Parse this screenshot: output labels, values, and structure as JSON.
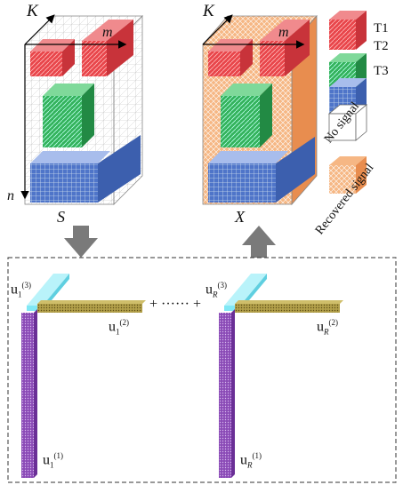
{
  "tensors": [
    {
      "name": "S",
      "axis_k": "K",
      "axis_m": "m",
      "axis_n": "n"
    },
    {
      "name": "X",
      "axis_k": "K",
      "axis_m": "m"
    }
  ],
  "legend": [
    {
      "label": "T1",
      "color": "#e8454a"
    },
    {
      "label": "T2",
      "color": "#33b25b"
    },
    {
      "label": "T3",
      "color": "#4f75c9"
    },
    {
      "label": "No signal",
      "color": "#ffffff"
    },
    {
      "label": "Recovered signal",
      "color": "#f2a26b"
    }
  ],
  "decomposition": {
    "op": "+ ······ +",
    "term1": {
      "u_base": "u",
      "u_sub": "1",
      "sup3": "(3)",
      "sup2": "(2)",
      "sup1": "(1)"
    },
    "termR": {
      "u_base": "u",
      "u_sub": "R",
      "sup3": "(3)",
      "sup2": "(2)",
      "sup1": "(1)"
    }
  },
  "colors": {
    "factor_mode3": "#80e8f5",
    "factor_mode2": "#b3a04a",
    "factor_mode1": "#8a4ab6",
    "arrow": "#7a7a7a"
  }
}
